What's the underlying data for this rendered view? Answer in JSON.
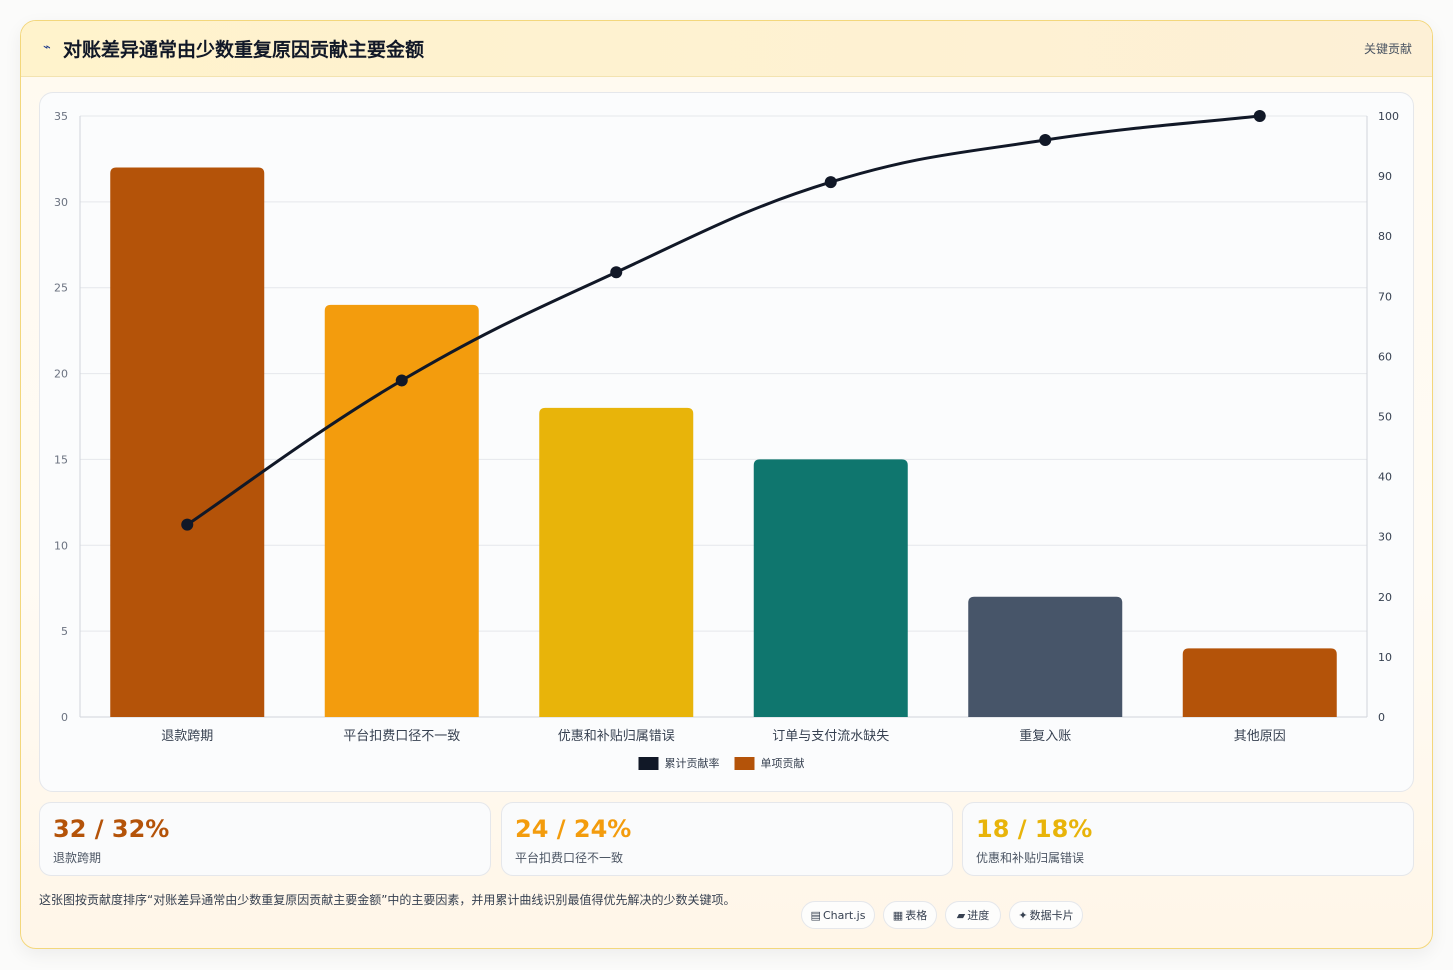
{
  "header": {
    "title_icon": "⌁",
    "title": "对账差异通常由少数重复原因贡献主要金额",
    "tag": "关键贡献"
  },
  "colors": {
    "bar_1": "#b45309",
    "bar_2": "#f39c0d",
    "bar_3": "#e8b40a",
    "bar_4": "#0f766e",
    "bar_5": "#475569",
    "bar_6": "#b45309",
    "line": "#111827"
  },
  "chart_data": {
    "type": "bar",
    "categories": [
      "退款跨期",
      "平台扣费口径不一致",
      "优惠和补贴归属错误",
      "订单与支付流水缺失",
      "重复入账",
      "其他原因"
    ],
    "series": [
      {
        "name": "单项贡献",
        "type": "bar",
        "axis": "left",
        "values": [
          32,
          24,
          18,
          15,
          7,
          4
        ]
      },
      {
        "name": "累计贡献率",
        "type": "line",
        "axis": "right",
        "values": [
          32,
          56,
          74,
          89,
          96,
          100
        ]
      }
    ],
    "y_left": {
      "min": 0,
      "max": 35,
      "ticks": [
        0,
        5,
        10,
        15,
        20,
        25,
        30,
        35
      ]
    },
    "y_right": {
      "min": 0,
      "max": 100,
      "ticks": [
        0,
        10,
        20,
        30,
        40,
        50,
        60,
        70,
        80,
        90,
        100
      ]
    },
    "legend": {
      "position": "bottom",
      "items": [
        "累计贡献率",
        "单项贡献"
      ]
    },
    "grid": true
  },
  "stats": [
    {
      "value": "32 / 32%",
      "label": "退款跨期",
      "color": "#b45309"
    },
    {
      "value": "24 / 24%",
      "label": "平台扣费口径不一致",
      "color": "#f39c0d"
    },
    {
      "value": "18 / 18%",
      "label": "优惠和补贴归属错误",
      "color": "#e8b40a"
    }
  ],
  "description": "这张图按贡献度排序“对账差异通常由少数重复原因贡献主要金额”中的主要因素，并用累计曲线识别最值得优先解决的少数关键项。",
  "chips": [
    {
      "icon": "▤",
      "label": "Chart.js"
    },
    {
      "icon": "▦",
      "label": "表格"
    },
    {
      "icon": "▰",
      "label": "进度"
    },
    {
      "icon": "✦",
      "label": "数据卡片"
    }
  ]
}
